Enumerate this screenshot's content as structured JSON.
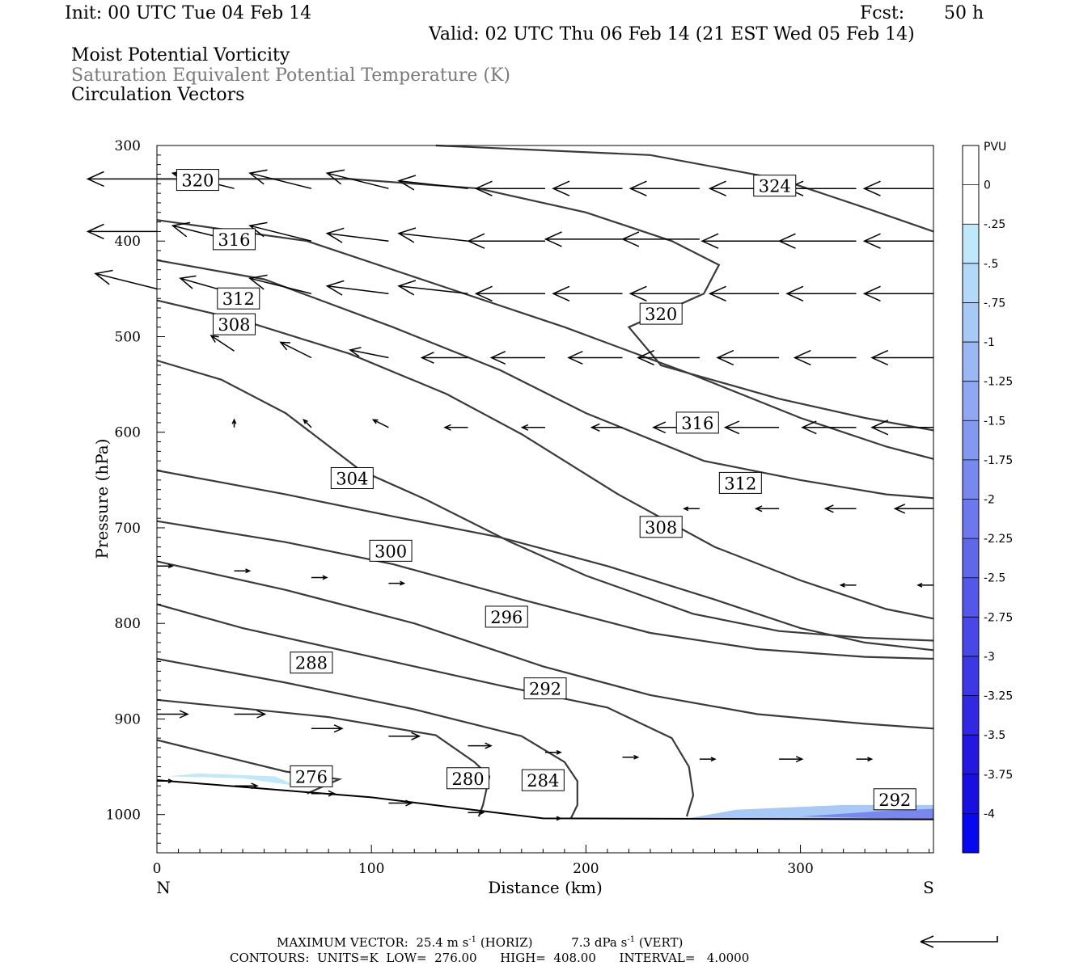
{
  "header": {
    "init": "Init: 00 UTC Tue 04 Feb 14",
    "fcst_label": "Fcst:",
    "fcst_value": "50 h",
    "valid": "Valid: 02 UTC Thu 06 Feb 14 (21 EST Wed 05 Feb 14)",
    "line1": "Moist Potential Vorticity",
    "line2": "Saturation Equivalent Potential Temperature (K)",
    "line3": "Circulation Vectors"
  },
  "chart_data": {
    "type": "cross-section contour",
    "xlabel": "Distance (km)",
    "ylabel": "Pressure (hPa)",
    "xlim": [
      0,
      362
    ],
    "ylim": [
      1040,
      300
    ],
    "x_ticks": [
      0,
      100,
      200,
      300
    ],
    "y_ticks": [
      300,
      400,
      500,
      600,
      700,
      800,
      900,
      1000
    ],
    "x_end_labels": {
      "left": "N",
      "right": "S"
    },
    "colorbar": {
      "title": "PVU",
      "ticks": [
        "0",
        "-.25",
        "-.5",
        "-.75",
        "-1",
        "-1.25",
        "-1.5",
        "-1.75",
        "-2",
        "-2.25",
        "-2.5",
        "-2.75",
        "-3",
        "-3.25",
        "-3.5",
        "-3.75",
        "-4"
      ],
      "colors": [
        "#ffffff",
        "#ffffff",
        "#c0e8fb",
        "#b4d8f8",
        "#a8c8f6",
        "#9cb8f4",
        "#90a8f2",
        "#8498f0",
        "#7888ee",
        "#6c78ec",
        "#6068ea",
        "#5458e8",
        "#4848e6",
        "#3c38e4",
        "#3028e2",
        "#2418e0",
        "#1810de",
        "#0808f0"
      ]
    },
    "contours": [
      {
        "label": "276",
        "points": [
          [
            0,
            922
          ],
          [
            60,
            955
          ],
          [
            85,
            963
          ],
          [
            70,
            978
          ]
        ]
      },
      {
        "label": "280",
        "points": [
          [
            0,
            880
          ],
          [
            80,
            898
          ],
          [
            130,
            917
          ],
          [
            148,
            945
          ],
          [
            155,
            960
          ],
          [
            152,
            990
          ],
          [
            150,
            1002
          ]
        ]
      },
      {
        "label": "284",
        "points": [
          [
            0,
            837
          ],
          [
            60,
            862
          ],
          [
            120,
            890
          ],
          [
            170,
            918
          ],
          [
            190,
            945
          ],
          [
            196,
            965
          ],
          [
            196,
            990
          ],
          [
            193,
            1004
          ]
        ]
      },
      {
        "label": "288",
        "points": [
          [
            0,
            780
          ],
          [
            40,
            805
          ],
          [
            100,
            835
          ],
          [
            160,
            865
          ],
          [
            210,
            888
          ],
          [
            240,
            920
          ],
          [
            248,
            950
          ],
          [
            250,
            980
          ],
          [
            247,
            1002
          ]
        ]
      },
      {
        "label": "292",
        "points": [
          [
            0,
            735
          ],
          [
            60,
            765
          ],
          [
            120,
            800
          ],
          [
            180,
            845
          ],
          [
            230,
            875
          ],
          [
            280,
            895
          ],
          [
            330,
            905
          ],
          [
            362,
            910
          ]
        ]
      },
      {
        "label": "296",
        "points": [
          [
            0,
            693
          ],
          [
            60,
            715
          ],
          [
            110,
            738
          ],
          [
            170,
            775
          ],
          [
            230,
            810
          ],
          [
            280,
            827
          ],
          [
            330,
            835
          ],
          [
            362,
            837
          ]
        ]
      },
      {
        "label": "300",
        "points": [
          [
            0,
            640
          ],
          [
            60,
            665
          ],
          [
            110,
            688
          ],
          [
            160,
            710
          ],
          [
            210,
            740
          ],
          [
            260,
            775
          ],
          [
            300,
            805
          ],
          [
            330,
            820
          ],
          [
            362,
            828
          ]
        ]
      },
      {
        "label": "304",
        "points": [
          [
            0,
            525
          ],
          [
            30,
            545
          ],
          [
            60,
            580
          ],
          [
            95,
            640
          ],
          [
            125,
            670
          ],
          [
            165,
            715
          ],
          [
            200,
            750
          ],
          [
            250,
            790
          ],
          [
            290,
            808
          ],
          [
            330,
            815
          ],
          [
            362,
            818
          ]
        ]
      },
      {
        "label": "308",
        "points": [
          [
            0,
            462
          ],
          [
            40,
            483
          ],
          [
            90,
            518
          ],
          [
            135,
            560
          ],
          [
            170,
            602
          ],
          [
            215,
            665
          ],
          [
            260,
            720
          ],
          [
            300,
            755
          ],
          [
            340,
            785
          ],
          [
            362,
            795
          ]
        ]
      },
      {
        "label": "312",
        "points": [
          [
            0,
            420
          ],
          [
            50,
            440
          ],
          [
            110,
            490
          ],
          [
            160,
            535
          ],
          [
            200,
            580
          ],
          [
            255,
            630
          ],
          [
            300,
            650
          ],
          [
            340,
            665
          ],
          [
            362,
            669
          ]
        ]
      },
      {
        "label": "316",
        "points": [
          [
            0,
            378
          ],
          [
            70,
            400
          ],
          [
            130,
            445
          ],
          [
            190,
            490
          ],
          [
            250,
            540
          ],
          [
            300,
            585
          ],
          [
            340,
            615
          ],
          [
            362,
            628
          ]
        ]
      },
      {
        "label": "320",
        "points": [
          [
            0,
            335
          ],
          [
            90,
            335
          ],
          [
            150,
            345
          ],
          [
            200,
            370
          ],
          [
            240,
            400
          ],
          [
            262,
            425
          ],
          [
            255,
            455
          ],
          [
            220,
            490
          ],
          [
            235,
            530
          ],
          [
            290,
            565
          ],
          [
            330,
            585
          ],
          [
            362,
            598
          ]
        ]
      },
      {
        "label": "324",
        "points": [
          [
            130,
            300
          ],
          [
            230,
            310
          ],
          [
            290,
            335
          ],
          [
            330,
            365
          ],
          [
            362,
            390
          ]
        ]
      }
    ],
    "contour_labels": [
      {
        "text": "320",
        "x": 19,
        "p": 336
      },
      {
        "text": "316",
        "x": 36,
        "p": 398
      },
      {
        "text": "312",
        "x": 38,
        "p": 460
      },
      {
        "text": "308",
        "x": 36,
        "p": 487
      },
      {
        "text": "304",
        "x": 91,
        "p": 648
      },
      {
        "text": "300",
        "x": 109,
        "p": 724
      },
      {
        "text": "296",
        "x": 163,
        "p": 793
      },
      {
        "text": "292",
        "x": 181,
        "p": 868
      },
      {
        "text": "288",
        "x": 72,
        "p": 841
      },
      {
        "text": "276",
        "x": 72,
        "p": 960
      },
      {
        "text": "280",
        "x": 145,
        "p": 962
      },
      {
        "text": "284",
        "x": 180,
        "p": 964
      },
      {
        "text": "320",
        "x": 235,
        "p": 476
      },
      {
        "text": "316",
        "x": 252,
        "p": 590
      },
      {
        "text": "312",
        "x": 272,
        "p": 653
      },
      {
        "text": "308",
        "x": 235,
        "p": 699
      },
      {
        "text": "324",
        "x": 288,
        "p": 342
      },
      {
        "text": "292",
        "x": 344,
        "p": 984
      }
    ],
    "surface": [
      [
        0,
        964
      ],
      [
        100,
        982
      ],
      [
        180,
        1004
      ],
      [
        362,
        1005
      ]
    ],
    "pv_shading": [
      {
        "level": "-0.25",
        "points": [
          [
            5,
            960
          ],
          [
            40,
            962
          ],
          [
            65,
            970
          ],
          [
            55,
            960
          ],
          [
            20,
            957
          ]
        ]
      },
      {
        "level": "-0.5",
        "points": [
          [
            245,
            1005
          ],
          [
            270,
            995
          ],
          [
            320,
            990
          ],
          [
            362,
            990
          ],
          [
            362,
            1005
          ]
        ]
      },
      {
        "level": "-1.5",
        "points": [
          [
            300,
            1002
          ],
          [
            340,
            996
          ],
          [
            362,
            994
          ],
          [
            362,
            1005
          ]
        ]
      }
    ],
    "vectors": [
      {
        "x": 0,
        "p": 335,
        "u": -9,
        "w": 0
      },
      {
        "x": 36,
        "p": 345,
        "u": -8,
        "w": 2
      },
      {
        "x": 72,
        "p": 345,
        "u": -8,
        "w": 2
      },
      {
        "x": 108,
        "p": 345,
        "u": -8,
        "w": 2
      },
      {
        "x": 145,
        "p": 345,
        "u": -9,
        "w": 1
      },
      {
        "x": 181,
        "p": 345,
        "u": -9,
        "w": 0
      },
      {
        "x": 217,
        "p": 345,
        "u": -9,
        "w": 0
      },
      {
        "x": 253,
        "p": 345,
        "u": -9,
        "w": 0
      },
      {
        "x": 290,
        "p": 345,
        "u": -9,
        "w": 0
      },
      {
        "x": 326,
        "p": 345,
        "u": -9,
        "w": 0
      },
      {
        "x": 362,
        "p": 345,
        "u": -9,
        "w": 0
      },
      {
        "x": 0,
        "p": 390,
        "u": -9,
        "w": 0
      },
      {
        "x": 36,
        "p": 400,
        "u": -8,
        "w": 2
      },
      {
        "x": 72,
        "p": 400,
        "u": -8,
        "w": 2
      },
      {
        "x": 108,
        "p": 400,
        "u": -8,
        "w": 1
      },
      {
        "x": 145,
        "p": 400,
        "u": -9,
        "w": 1
      },
      {
        "x": 181,
        "p": 400,
        "u": -10,
        "w": 0
      },
      {
        "x": 217,
        "p": 398,
        "u": -10,
        "w": 0
      },
      {
        "x": 253,
        "p": 398,
        "u": -10,
        "w": 0
      },
      {
        "x": 290,
        "p": 400,
        "u": -10,
        "w": 0
      },
      {
        "x": 326,
        "p": 400,
        "u": -10,
        "w": 0
      },
      {
        "x": 362,
        "p": 400,
        "u": -9,
        "w": 0
      },
      {
        "x": 0,
        "p": 450,
        "u": -8,
        "w": 2
      },
      {
        "x": 36,
        "p": 455,
        "u": -7,
        "w": 2
      },
      {
        "x": 72,
        "p": 455,
        "u": -8,
        "w": 2
      },
      {
        "x": 108,
        "p": 455,
        "u": -8,
        "w": 1
      },
      {
        "x": 145,
        "p": 455,
        "u": -9,
        "w": 1
      },
      {
        "x": 181,
        "p": 455,
        "u": -9,
        "w": 0
      },
      {
        "x": 217,
        "p": 455,
        "u": -9,
        "w": 0
      },
      {
        "x": 253,
        "p": 455,
        "u": -9,
        "w": 0
      },
      {
        "x": 290,
        "p": 455,
        "u": -9,
        "w": 0
      },
      {
        "x": 326,
        "p": 455,
        "u": -9,
        "w": 0
      },
      {
        "x": 362,
        "p": 455,
        "u": -9,
        "w": 0
      },
      {
        "x": 36,
        "p": 515,
        "u": -3,
        "w": 2
      },
      {
        "x": 72,
        "p": 522,
        "u": -4,
        "w": 2
      },
      {
        "x": 108,
        "p": 522,
        "u": -5,
        "w": 1
      },
      {
        "x": 145,
        "p": 522,
        "u": -6,
        "w": 0
      },
      {
        "x": 181,
        "p": 522,
        "u": -7,
        "w": 0
      },
      {
        "x": 217,
        "p": 522,
        "u": -7,
        "w": 0
      },
      {
        "x": 253,
        "p": 522,
        "u": -8,
        "w": 0
      },
      {
        "x": 290,
        "p": 522,
        "u": -8,
        "w": 0
      },
      {
        "x": 326,
        "p": 522,
        "u": -8,
        "w": 0
      },
      {
        "x": 362,
        "p": 522,
        "u": -8,
        "w": 0
      },
      {
        "x": 36,
        "p": 595,
        "u": 0,
        "w": 1
      },
      {
        "x": 72,
        "p": 595,
        "u": -1,
        "w": 1
      },
      {
        "x": 108,
        "p": 595,
        "u": -2,
        "w": 1
      },
      {
        "x": 145,
        "p": 595,
        "u": -3,
        "w": 0
      },
      {
        "x": 181,
        "p": 595,
        "u": -3,
        "w": 0
      },
      {
        "x": 217,
        "p": 595,
        "u": -4,
        "w": 0
      },
      {
        "x": 253,
        "p": 595,
        "u": -6,
        "w": 0
      },
      {
        "x": 290,
        "p": 595,
        "u": -7,
        "w": 0
      },
      {
        "x": 326,
        "p": 595,
        "u": -7,
        "w": 0
      },
      {
        "x": 362,
        "p": 595,
        "u": -8,
        "w": 0
      },
      {
        "x": 253,
        "p": 680,
        "u": -2,
        "w": 0
      },
      {
        "x": 290,
        "p": 680,
        "u": -3,
        "w": 0
      },
      {
        "x": 326,
        "p": 680,
        "u": -4,
        "w": 0
      },
      {
        "x": 362,
        "p": 680,
        "u": -5,
        "w": 0
      },
      {
        "x": 0,
        "p": 740,
        "u": 2,
        "w": 0
      },
      {
        "x": 36,
        "p": 745,
        "u": 2,
        "w": 0
      },
      {
        "x": 72,
        "p": 752,
        "u": 2,
        "w": 0
      },
      {
        "x": 108,
        "p": 758,
        "u": 2,
        "w": 0
      },
      {
        "x": 326,
        "p": 760,
        "u": -2,
        "w": 0
      },
      {
        "x": 362,
        "p": 760,
        "u": -2,
        "w": 0
      },
      {
        "x": 0,
        "p": 895,
        "u": 4,
        "w": 0
      },
      {
        "x": 36,
        "p": 895,
        "u": 4,
        "w": 0
      },
      {
        "x": 72,
        "p": 910,
        "u": 4,
        "w": 0
      },
      {
        "x": 108,
        "p": 918,
        "u": 4,
        "w": 0
      },
      {
        "x": 145,
        "p": 928,
        "u": 3,
        "w": 0
      },
      {
        "x": 181,
        "p": 935,
        "u": 2,
        "w": 0
      },
      {
        "x": 217,
        "p": 940,
        "u": 2,
        "w": 0
      },
      {
        "x": 253,
        "p": 942,
        "u": 2,
        "w": 0
      },
      {
        "x": 290,
        "p": 942,
        "u": 3,
        "w": 0
      },
      {
        "x": 326,
        "p": 942,
        "u": 2,
        "w": 0
      },
      {
        "x": 0,
        "p": 965,
        "u": 2,
        "w": 0
      },
      {
        "x": 36,
        "p": 970,
        "u": 3,
        "w": 0
      },
      {
        "x": 72,
        "p": 978,
        "u": 3,
        "w": 0
      },
      {
        "x": 108,
        "p": 988,
        "u": 3,
        "w": 0
      },
      {
        "x": 145,
        "p": 998,
        "u": 2,
        "w": 0
      },
      {
        "x": 181,
        "p": 1004,
        "u": 2,
        "w": 0
      }
    ],
    "max_vector_horiz": "25.4",
    "max_vector_vert": "7.3",
    "contour_units": "K",
    "contour_low": "276.00",
    "contour_high": "408.00",
    "contour_interval": "4.0000"
  },
  "footer": {
    "max_vector_label": "MAXIMUM VECTOR:",
    "horiz_value": "25.4",
    "horiz_unit_base": "m s",
    "horiz_unit_exp": "-1",
    "horiz_tag": "(HORIZ)",
    "vert_value": "7.3",
    "vert_unit_base": "dPa s",
    "vert_unit_exp": "-1",
    "vert_tag": "(VERT)",
    "contours_label": "CONTOURS:",
    "units": "UNITS=K",
    "low": "LOW=",
    "low_value": "276.00",
    "high": "HIGH=",
    "high_value": "408.00",
    "interval": "INTERVAL=",
    "interval_value": "4.0000"
  }
}
